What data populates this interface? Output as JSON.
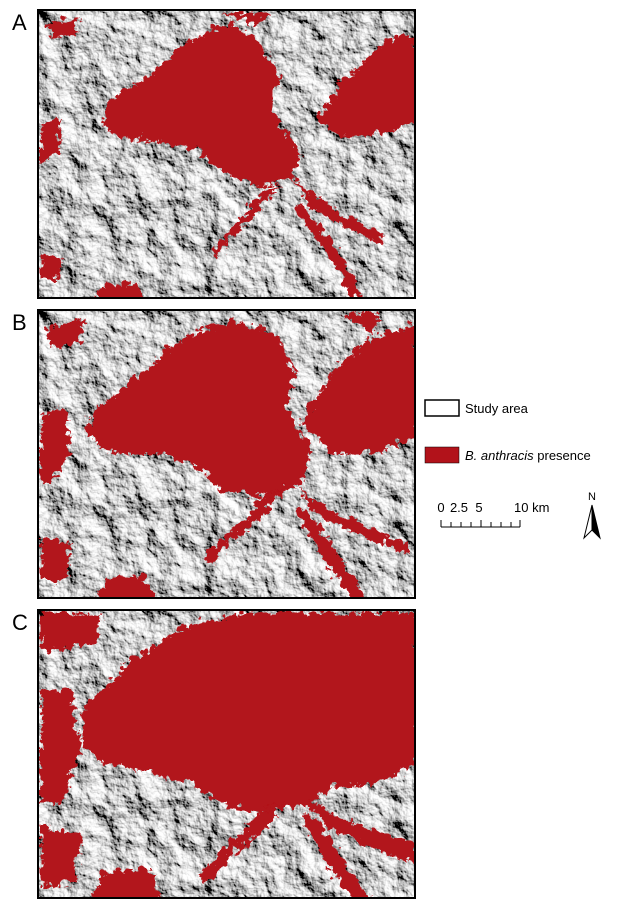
{
  "panels": [
    {
      "label": "A"
    },
    {
      "label": "B"
    },
    {
      "label": "C"
    }
  ],
  "legend": {
    "study_area": "Study area",
    "presence_italic": "B. anthracis",
    "presence_rest": " presence"
  },
  "scale_bar": {
    "labels": [
      "0",
      "2.5",
      "5",
      "10 km"
    ]
  },
  "north_arrow": {
    "label": "N"
  }
}
